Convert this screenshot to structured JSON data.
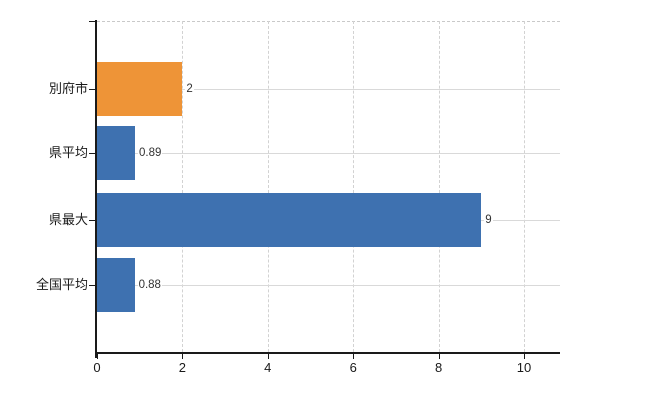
{
  "chart_data": {
    "type": "bar",
    "orientation": "horizontal",
    "title": "",
    "xlabel": "",
    "ylabel": "",
    "categories": [
      "別府市",
      "県平均",
      "県最大",
      "全国平均"
    ],
    "values": [
      2,
      0.89,
      9,
      0.88
    ],
    "value_labels": [
      "2",
      "0.89",
      "9",
      "0.88"
    ],
    "series": [
      {
        "name": "",
        "values": [
          2,
          0.89,
          9,
          0.88
        ]
      }
    ],
    "bar_colors": [
      "#ee9437",
      "#3e71b0",
      "#3e71b0",
      "#3e71b0"
    ],
    "x_ticks": [
      0,
      2,
      4,
      6,
      8,
      10
    ],
    "x_tick_labels": [
      "0",
      "2",
      "4",
      "6",
      "8",
      "10"
    ],
    "xlim": [
      0,
      10.84
    ],
    "grid": true,
    "legend_position": "none"
  },
  "colors": {
    "highlight_bar": "#ee9437",
    "default_bar": "#3e71b0",
    "vertical_gridline": "#d2d2d2",
    "horizontal_gridline": "#d9d9d9",
    "top_border": "#c9c9c9",
    "axis": "#1a1a1a",
    "background": "#ffffff",
    "text": "#1a1a1a",
    "value_text": "#333333"
  }
}
